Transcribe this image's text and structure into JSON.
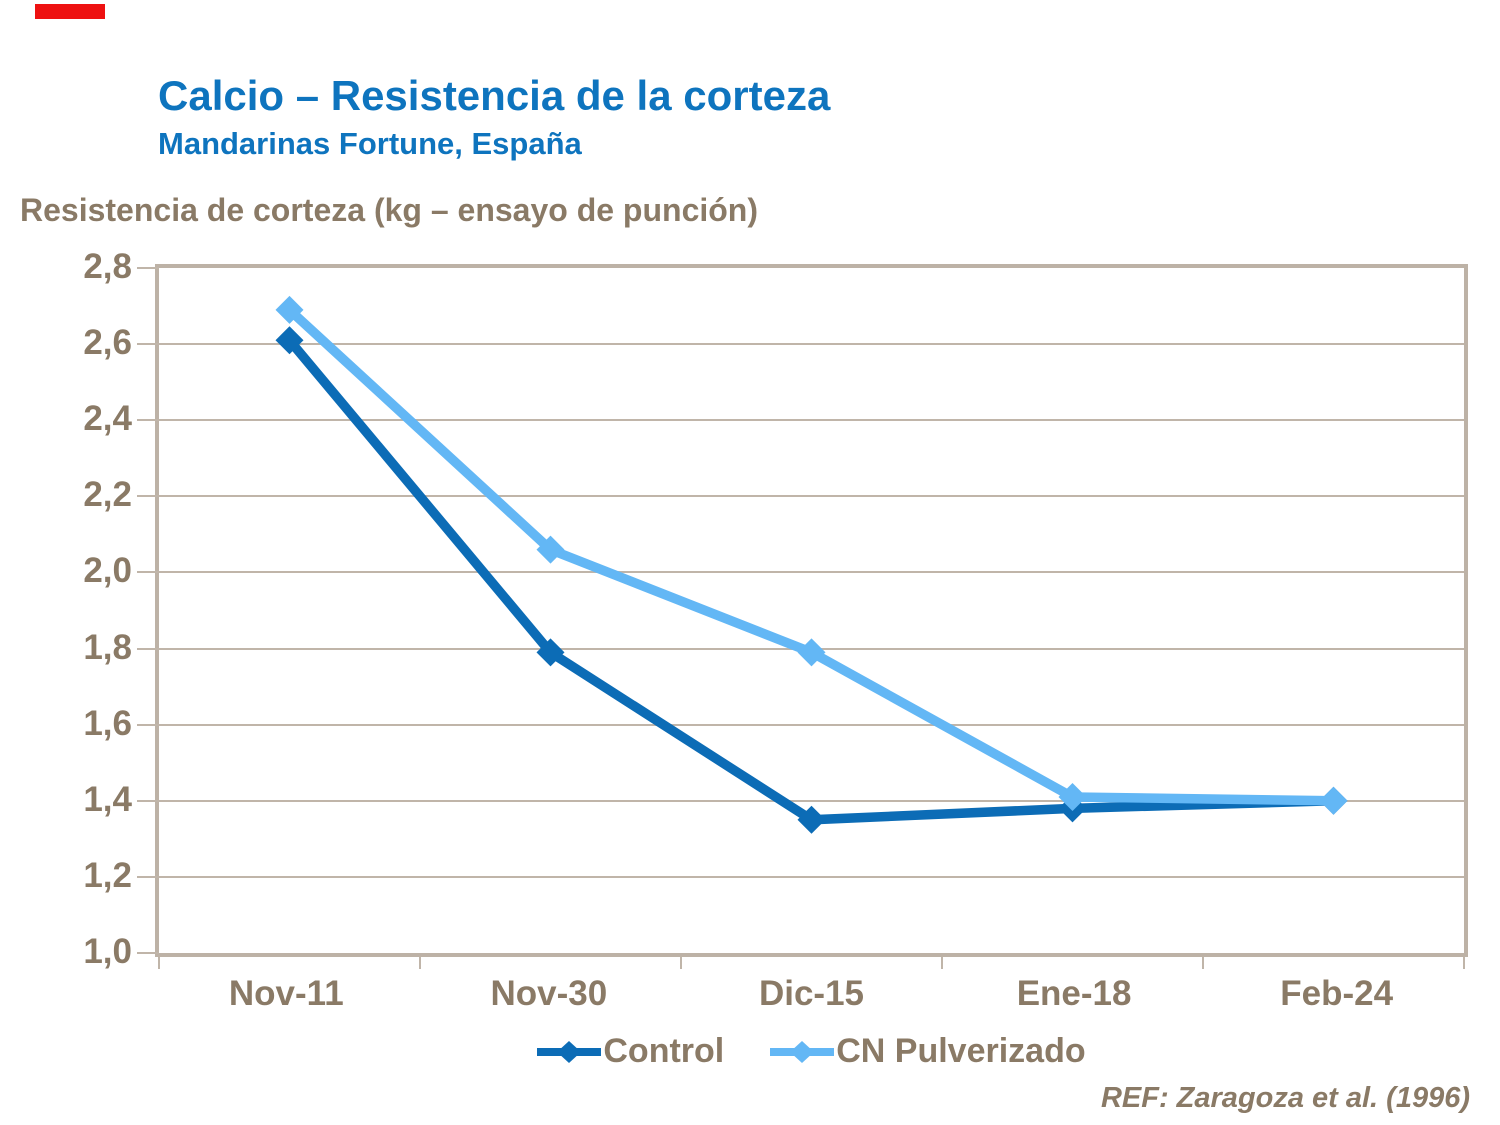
{
  "decoration": {
    "red_mark_color": "#EE1111"
  },
  "header": {
    "title": "Calcio – Resistencia de la corteza",
    "subtitle": "Mandarinas Fortune, España",
    "title_color": "#0E74BE"
  },
  "chart_data": {
    "type": "line",
    "title": "Resistencia de corteza (kg – ensayo de punción)",
    "categories": [
      "Nov-11",
      "Nov-30",
      "Dic-15",
      "Ene-18",
      "Feb-24"
    ],
    "series": [
      {
        "name": "Control",
        "color": "#0C6CB6",
        "values": [
          2.61,
          1.79,
          1.35,
          1.38,
          1.4
        ]
      },
      {
        "name": "CN Pulverizado",
        "color": "#63B7F5",
        "values": [
          2.69,
          2.06,
          1.79,
          1.41,
          1.4
        ]
      }
    ],
    "ylim": [
      1.0,
      2.8
    ],
    "ytick_step": 0.2,
    "ytick_labels": [
      "2,8",
      "2,6",
      "2,4",
      "2,2",
      "2,0",
      "1,8",
      "1,6",
      "1,4",
      "1,2",
      "1,0"
    ],
    "grid": true,
    "legend_position": "bottom",
    "marker": "diamond",
    "text_color": "#8A7A66",
    "grid_color": "#C0B5A9",
    "border_color": "#BDB2A6"
  },
  "footer": {
    "reference": "REF: Zaragoza et al. (1996)"
  }
}
